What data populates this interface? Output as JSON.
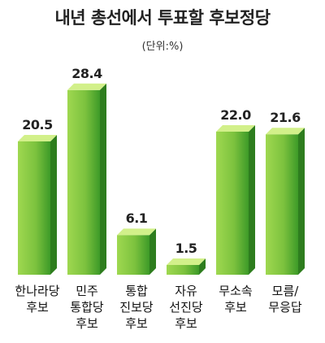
{
  "chart_data": {
    "type": "bar",
    "title": "내년 총선에서 투표할 후보정당",
    "unit_label": "(단위:%)",
    "categories": [
      [
        "한나라당",
        "후보"
      ],
      [
        "민주",
        "통합당",
        "후보"
      ],
      [
        "통합",
        "진보당",
        "후보"
      ],
      [
        "자유",
        "선진당",
        "후보"
      ],
      [
        "무소속",
        "후보"
      ],
      [
        "모름/",
        "무응답"
      ]
    ],
    "values": [
      20.5,
      28.4,
      6.1,
      1.5,
      22.0,
      21.6
    ],
    "value_labels": [
      "20.5",
      "28.4",
      "6.1",
      "1.5",
      "22.0",
      "21.6"
    ],
    "ylim": [
      0,
      30
    ],
    "grid": false,
    "legend": "none",
    "colors": {
      "bar_front_light": "#9fd850",
      "bar_front_dark": "#3d9a28",
      "bar_top": "#d2f08a",
      "bar_side": "#2e7d1e"
    }
  }
}
